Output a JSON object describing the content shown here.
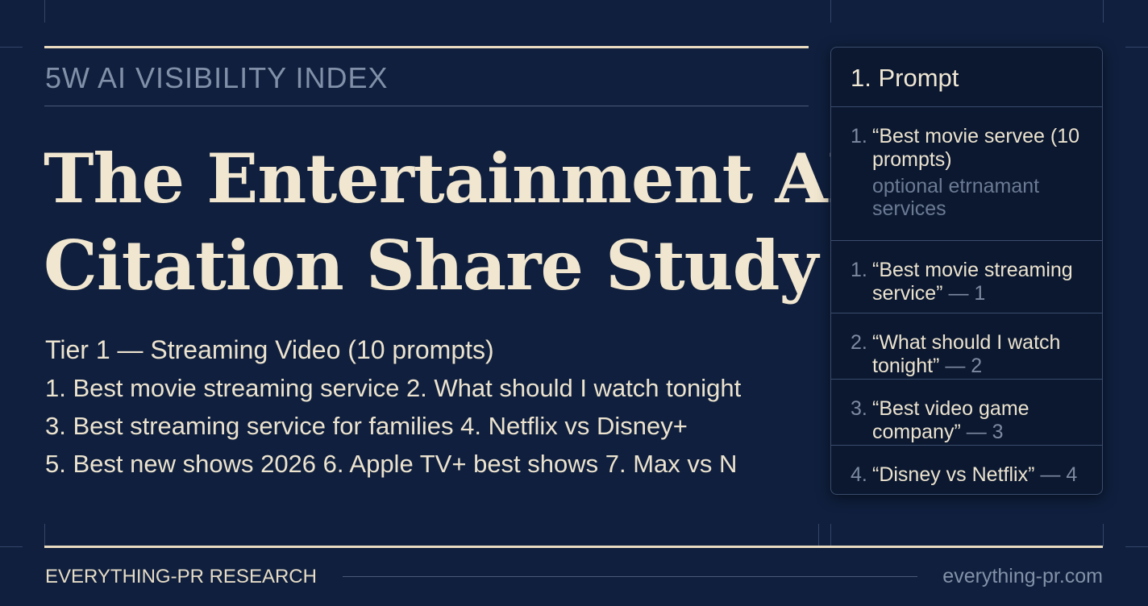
{
  "header": {
    "kicker": "5W AI VISIBILITY INDEX",
    "title_lines": [
      "The Entertainment AI",
      "Citation Share Study"
    ]
  },
  "tier": {
    "heading": "Tier 1 — Streaming Video (10 prompts)",
    "lines": [
      "1. Best movie streaming service 2. What should I watch tonight",
      "3. Best streaming service for families 4. Netflix vs Disney+",
      "5. Best new shows 2026 6. Apple TV+ best shows 7. Max vs N"
    ]
  },
  "panel": {
    "title": "1. Prompt",
    "items": [
      {
        "number": "1.",
        "text": "“Best movie servee (10 prompts)",
        "note": "optional etrnamant services"
      },
      {
        "number": "1.",
        "text": "“Best movie streaming service”",
        "suffix": "— 1"
      },
      {
        "number": "2.",
        "text": "“What should I watch tonight”",
        "suffix": "— 2"
      },
      {
        "number": "3.",
        "text": "“Best video game company”",
        "suffix": "— 3"
      },
      {
        "number": "4.",
        "text": "“Disney vs Netflix”",
        "suffix": "— 4"
      }
    ]
  },
  "footer": {
    "left": "EVERYTHING-PR RESEARCH",
    "right": "everything-pr.com"
  }
}
